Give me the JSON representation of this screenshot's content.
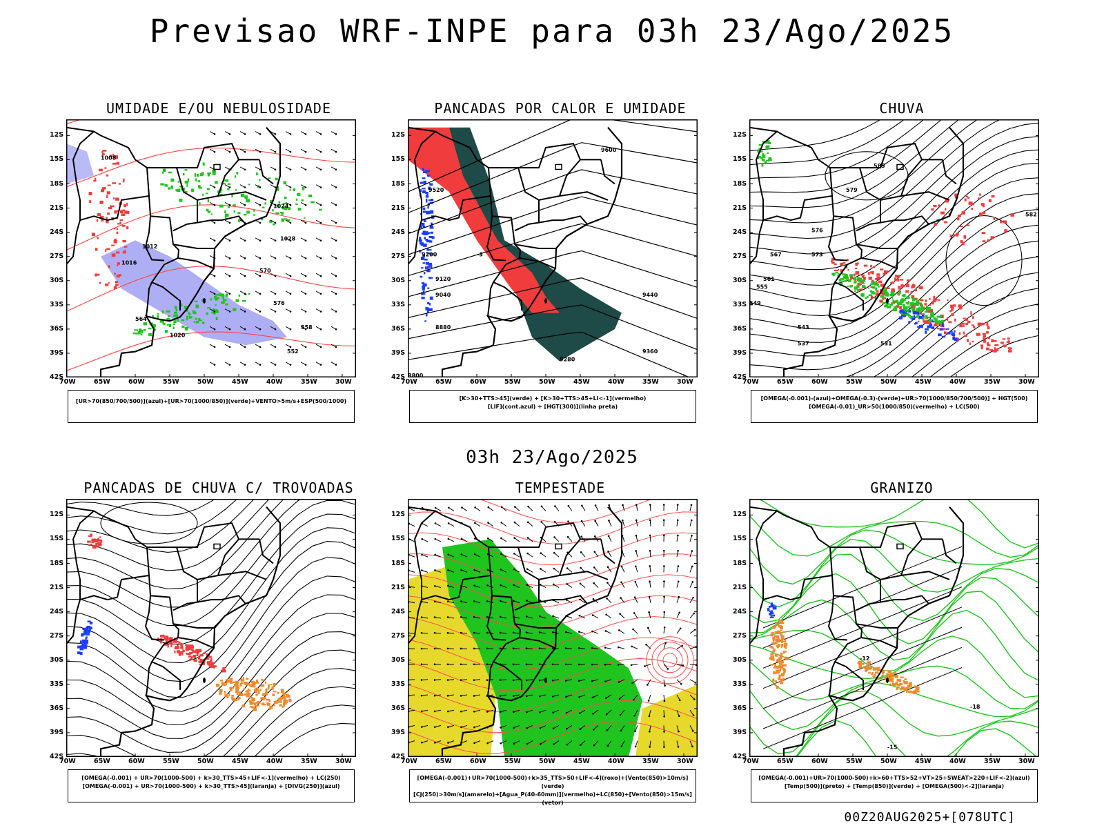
{
  "header": {
    "title": "Previsao WRF-INPE  para 03h 23/Ago/2025"
  },
  "mid_title": "03h 23/Ago/2025",
  "footer": "00Z20AUG2025+[078UTC]",
  "axes": {
    "lat_labels": [
      "12S",
      "15S",
      "18S",
      "21S",
      "24S",
      "27S",
      "30S",
      "33S",
      "36S",
      "39S",
      "42S"
    ],
    "lon_labels": [
      "70W",
      "65W",
      "60W",
      "55W",
      "50W",
      "45W",
      "40W",
      "35W",
      "30W"
    ]
  },
  "panels": [
    {
      "title": "UMIDADE E/OU NEBULOSIDADE",
      "legend": [
        "[UR>70(850/700/500)](azul)+[UR>70(1000/850)](verde)+VENTO>5m/s+ESP(500/1000)"
      ],
      "layers": [
        "blue",
        "green",
        "red-dashed",
        "wind"
      ]
    },
    {
      "title": "PANCADAS POR CALOR E UMIDADE",
      "legend": [
        "[K>30+TTS>45](verde) + [K>30+TTS>45+LI<-1](vermelho)",
        "[LIF](cont.azul) + [HGT(300)](linha preta)"
      ],
      "layers": [
        "red-fill",
        "darkgreen-fill",
        "blue-contour",
        "black-contour"
      ]
    },
    {
      "title": "CHUVA",
      "legend": [
        "[OMEGA(-0.001)-(azul)+OMEGA(-0.3)-(verde)+UR>70(1000/850/700/500)] + HGT(500)",
        "[OMEGA(-0.01)_UR>50(1000/850)(vermelho) + LC(500)"
      ],
      "layers": [
        "red-speckle",
        "green-speckle",
        "streamlines"
      ]
    },
    {
      "title": "PANCADAS DE CHUVA C/ TROVOADAS",
      "legend": [
        "[OMEGA(-0.001) + UR>70(1000-500) + k>30_TTS>45+LIF<-1](vermelho) + LC(250)",
        "[OMEGA(-0.001) + UR>70(1000-500) + k>30_TTS>45](laranja) + [DIVG(250)](azul)"
      ],
      "layers": [
        "streamlines",
        "red-speckle",
        "orange-speckle",
        "blue-speckle"
      ]
    },
    {
      "title": "TEMPESTADE",
      "legend": [
        "[OMEGA(-0.001)+UR>70(1000-500)+k>35_TTS>50+LIF<-4](roxo)+[Vento(850)>10m/s](verde)",
        "[CJ(250)>30m/s](amarelo)+[Agua_P(40-60mm)](vermelho)+LC(850)+[Vento(850)>15m/s](vetor)"
      ],
      "layers": [
        "yellow-fill",
        "green-fill",
        "red-streamlines",
        "vectors"
      ]
    },
    {
      "title": "GRANIZO",
      "legend": [
        "[OMEGA(-0.001)+UR>70(1000-500)+k>60+TTS>52+VT>25+SWEAT>220+LIF<-2](azul)",
        "[Temp(500)](preto) + [Temp(850)](verde) + [OMEGA(500)<-2](laranja)"
      ],
      "layers": [
        "green-contour",
        "black-contour",
        "orange-speckle"
      ]
    }
  ],
  "map_labels": {
    "p1": [
      "1012",
      "1016",
      "1020",
      "1024",
      "1028",
      "1008",
      "576",
      "570",
      "564",
      "558",
      "552"
    ],
    "p2": [
      "9600",
      "9520",
      "9440",
      "9360",
      "9280",
      "9200",
      "9120",
      "9040",
      "8880",
      "8800",
      "-3"
    ],
    "p3": [
      "585",
      "582",
      "579",
      "576",
      "573",
      "567",
      "561",
      "555",
      "549",
      "543",
      "537",
      "531"
    ],
    "p6": [
      "-12",
      "-15",
      "-18"
    ]
  },
  "colors": {
    "blue": "#1c3cff",
    "lightblue": "#8c8cf0",
    "green": "#1fc41f",
    "red": "#f03c3c",
    "darkgreen": "#1e4a48",
    "yellow": "#e6d92c",
    "orange": "#f08a2c",
    "black": "#000000"
  }
}
